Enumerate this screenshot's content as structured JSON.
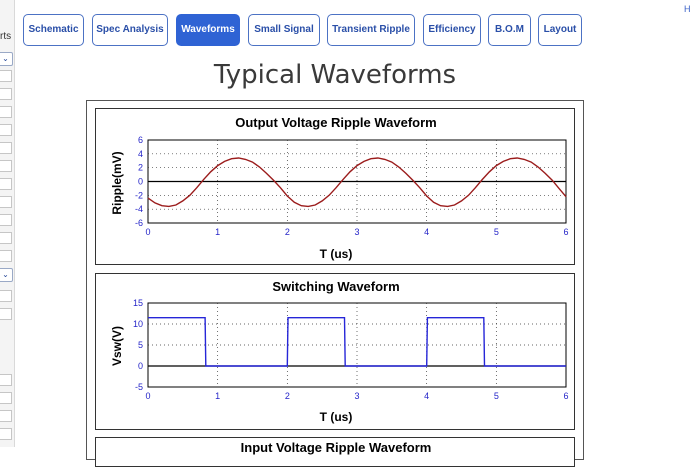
{
  "sidebar": {
    "label": "rts"
  },
  "corner_link": "H",
  "tabs": [
    {
      "label": "Schematic",
      "active": false
    },
    {
      "label": "Spec Analysis",
      "active": false
    },
    {
      "label": "Waveforms",
      "active": true
    },
    {
      "label": "Small Signal",
      "active": false
    },
    {
      "label": "Transient Ripple",
      "active": false
    },
    {
      "label": "Efficiency",
      "active": false
    },
    {
      "label": "B.O.M",
      "active": false
    },
    {
      "label": "Layout",
      "active": false
    }
  ],
  "page_title": "Typical Waveforms",
  "charts": {
    "ripple": {
      "title": "Output Voltage Ripple Waveform",
      "xlabel": "T (us)",
      "ylabel": "Ripple(mV)",
      "color": "#9b1c1c"
    },
    "switching": {
      "title": "Switching Waveform",
      "xlabel": "T (us)",
      "ylabel": "Vsw(V)",
      "color": "#2626d8"
    },
    "input": {
      "title": "Input Voltage Ripple Waveform"
    }
  },
  "chart_data": [
    {
      "type": "line",
      "title": "Output Voltage Ripple Waveform",
      "xlabel": "T (us)",
      "ylabel": "Ripple(mV)",
      "xlim": [
        0,
        6
      ],
      "ylim": [
        -6,
        6
      ],
      "xticks": [
        0,
        1,
        2,
        3,
        4,
        5,
        6
      ],
      "yticks": [
        6,
        4,
        2,
        0,
        -2,
        -4,
        -6
      ],
      "grid": true,
      "series": [
        {
          "x": [
            0,
            0.1,
            0.2,
            0.3,
            0.4,
            0.5,
            0.6,
            0.7,
            0.8,
            0.9,
            1.0,
            1.1,
            1.2,
            1.3,
            1.4,
            1.5,
            1.6,
            1.7,
            1.8,
            1.9,
            2.0,
            2.1,
            2.2,
            2.3,
            2.4,
            2.5,
            2.6,
            2.7,
            2.8,
            2.9,
            3.0,
            3.1,
            3.2,
            3.3,
            3.4,
            3.5,
            3.6,
            3.7,
            3.8,
            3.9,
            4.0,
            4.1,
            4.2,
            4.3,
            4.4,
            4.5,
            4.6,
            4.7,
            4.8,
            4.9,
            5.0,
            5.1,
            5.2,
            5.3,
            5.4,
            5.5,
            5.6,
            5.7,
            5.8,
            5.9,
            6.0
          ],
          "y": [
            -2.4,
            -3.1,
            -3.5,
            -3.6,
            -3.4,
            -2.8,
            -2.0,
            -0.9,
            0.3,
            1.4,
            2.3,
            2.9,
            3.3,
            3.4,
            3.2,
            2.8,
            2.1,
            1.2,
            0.2,
            -0.9,
            -2.1,
            -3.0,
            -3.5,
            -3.6,
            -3.4,
            -2.8,
            -2.0,
            -0.9,
            0.3,
            1.4,
            2.3,
            2.9,
            3.3,
            3.4,
            3.2,
            2.8,
            2.1,
            1.2,
            0.2,
            -0.9,
            -2.1,
            -3.0,
            -3.5,
            -3.6,
            -3.4,
            -2.8,
            -2.0,
            -0.9,
            0.3,
            1.4,
            2.3,
            2.9,
            3.3,
            3.4,
            3.2,
            2.8,
            2.1,
            1.2,
            0.2,
            -1.0,
            -2.2
          ]
        }
      ]
    },
    {
      "type": "line",
      "title": "Switching Waveform",
      "xlabel": "T (us)",
      "ylabel": "Vsw(V)",
      "xlim": [
        0,
        6
      ],
      "ylim": [
        -5,
        15
      ],
      "xticks": [
        0,
        1,
        2,
        3,
        4,
        5,
        6
      ],
      "yticks": [
        15,
        10,
        5,
        0,
        -5
      ],
      "grid": true,
      "series": [
        {
          "x": [
            0,
            0.82,
            0.83,
            2.0,
            2.01,
            2.82,
            2.83,
            4.0,
            4.01,
            4.82,
            4.83,
            6.0
          ],
          "y": [
            11.5,
            11.5,
            0,
            0,
            11.5,
            11.5,
            0,
            0,
            11.5,
            11.5,
            0,
            0
          ]
        }
      ]
    }
  ]
}
